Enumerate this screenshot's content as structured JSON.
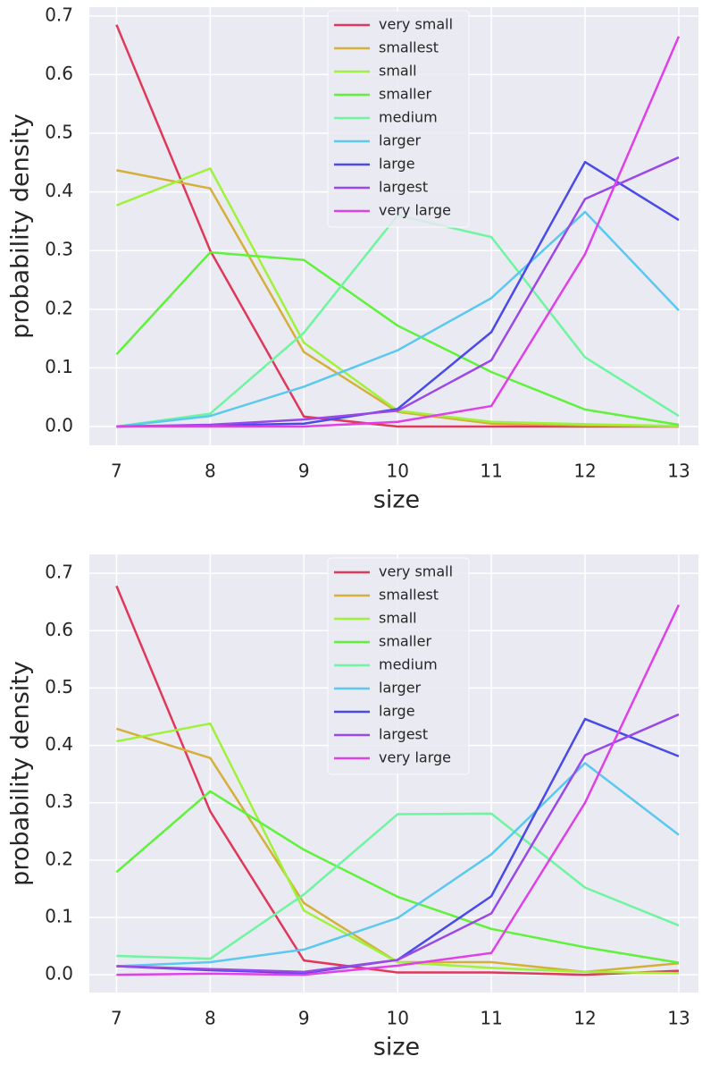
{
  "chart_data": [
    {
      "type": "line",
      "x_label": "size",
      "y_label": "probability density",
      "x": [
        7,
        8,
        9,
        10,
        11,
        12,
        13
      ],
      "xlim": [
        6.71,
        13.21
      ],
      "ylim": [
        -0.032,
        0.715
      ],
      "xticks": [
        7,
        8,
        9,
        10,
        11,
        12,
        13
      ],
      "yticks": [
        {
          "value": 0,
          "label": "0.0"
        },
        0.1,
        0.2,
        0.3,
        0.4,
        0.5,
        0.6,
        0.7
      ],
      "grid": true,
      "legend": "upper center",
      "series": [
        {
          "name": "very small",
          "color": "#e0385a",
          "values": [
            0.685,
            0.3,
            0.017,
            0.0,
            0.0,
            0.0,
            0.0
          ]
        },
        {
          "name": "smallest",
          "color": "#d4b03a",
          "values": [
            0.437,
            0.406,
            0.127,
            0.025,
            0.005,
            0.002,
            0.0
          ]
        },
        {
          "name": "small",
          "color": "#9ef23a",
          "values": [
            0.377,
            0.44,
            0.143,
            0.027,
            0.008,
            0.004,
            0.001
          ]
        },
        {
          "name": "smaller",
          "color": "#5ef23a",
          "values": [
            0.123,
            0.297,
            0.284,
            0.172,
            0.093,
            0.029,
            0.003
          ]
        },
        {
          "name": "medium",
          "color": "#6ef5a0",
          "values": [
            0.0,
            0.022,
            0.16,
            0.36,
            0.323,
            0.118,
            0.018
          ]
        },
        {
          "name": "larger",
          "color": "#5bc8f0",
          "values": [
            0.0,
            0.018,
            0.068,
            0.13,
            0.219,
            0.366,
            0.198
          ]
        },
        {
          "name": "large",
          "color": "#4a4ae8",
          "values": [
            0.0,
            0.002,
            0.005,
            0.03,
            0.161,
            0.451,
            0.352
          ]
        },
        {
          "name": "largest",
          "color": "#9a48e8",
          "values": [
            0.0,
            0.003,
            0.012,
            0.027,
            0.113,
            0.388,
            0.459
          ]
        },
        {
          "name": "very large",
          "color": "#e040e8",
          "values": [
            0.0,
            0.0,
            0.0,
            0.008,
            0.035,
            0.294,
            0.665
          ]
        }
      ]
    },
    {
      "type": "line",
      "x_label": "size",
      "y_label": "probability density",
      "x": [
        7,
        8,
        9,
        10,
        11,
        12,
        13
      ],
      "xlim": [
        6.71,
        13.21
      ],
      "ylim": [
        -0.031,
        0.733
      ],
      "xticks": [
        7,
        8,
        9,
        10,
        11,
        12,
        13
      ],
      "yticks": [
        {
          "value": 0,
          "label": "0.0"
        },
        0.1,
        0.2,
        0.3,
        0.4,
        0.5,
        0.6,
        0.7
      ],
      "grid": true,
      "legend": "upper center",
      "series": [
        {
          "name": "very small",
          "color": "#e0385a",
          "values": [
            0.678,
            0.285,
            0.025,
            0.004,
            0.004,
            0.0,
            0.007
          ]
        },
        {
          "name": "smallest",
          "color": "#d4b03a",
          "values": [
            0.429,
            0.378,
            0.125,
            0.022,
            0.022,
            0.005,
            0.02
          ]
        },
        {
          "name": "small",
          "color": "#9ef23a",
          "values": [
            0.407,
            0.438,
            0.112,
            0.022,
            0.012,
            0.005,
            0.003
          ]
        },
        {
          "name": "smaller",
          "color": "#5ef23a",
          "values": [
            0.179,
            0.32,
            0.218,
            0.136,
            0.08,
            0.048,
            0.021
          ]
        },
        {
          "name": "medium",
          "color": "#6ef5a0",
          "values": [
            0.033,
            0.028,
            0.14,
            0.28,
            0.281,
            0.152,
            0.086
          ]
        },
        {
          "name": "larger",
          "color": "#5bc8f0",
          "values": [
            0.015,
            0.022,
            0.044,
            0.099,
            0.21,
            0.369,
            0.244
          ]
        },
        {
          "name": "large",
          "color": "#4a4ae8",
          "values": [
            0.015,
            0.008,
            0.003,
            0.026,
            0.137,
            0.446,
            0.381
          ]
        },
        {
          "name": "largest",
          "color": "#9a48e8",
          "values": [
            0.015,
            0.01,
            0.005,
            0.026,
            0.107,
            0.383,
            0.454
          ]
        },
        {
          "name": "very large",
          "color": "#e040e8",
          "values": [
            0.0,
            0.002,
            0.0,
            0.016,
            0.038,
            0.3,
            0.645
          ]
        }
      ]
    }
  ]
}
